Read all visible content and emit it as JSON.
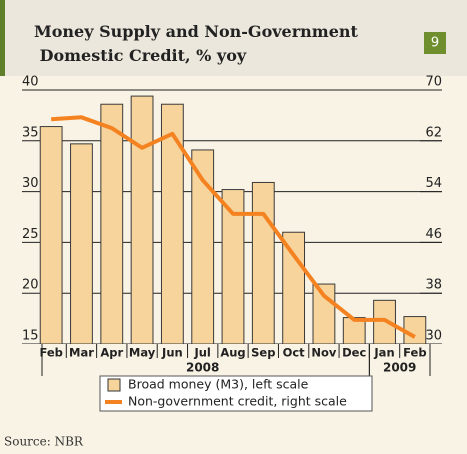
{
  "chart_data": {
    "type": "bar_line",
    "title": "Money Supply and Non-Government Domestic Credit, % yoy",
    "badge": "9",
    "categories": [
      "Feb",
      "Mar",
      "Apr",
      "May",
      "Jun",
      "Jul",
      "Aug",
      "Sep",
      "Oct",
      "Nov",
      "Dec",
      "Jan",
      "Feb"
    ],
    "year_labels": [
      "2008",
      "2009"
    ],
    "series": [
      {
        "name": "Broad money (M3), left scale",
        "color": "#f6d49c",
        "type": "bar",
        "values": [
          36.4,
          34.7,
          38.6,
          39.4,
          38.6,
          34.1,
          30.2,
          30.9,
          26.0,
          20.9,
          17.6,
          19.3,
          17.7
        ]
      },
      {
        "name": "Non-government credit, right scale",
        "color": "#f58220",
        "type": "line",
        "axis": "y2",
        "values": [
          65.4,
          65.7,
          64.0,
          60.9,
          63.1,
          55.8,
          50.5,
          50.5,
          44.0,
          37.6,
          33.8,
          33.8,
          31.1
        ]
      }
    ],
    "ylim": [
      15,
      40
    ],
    "yticks": [
      15,
      20,
      25,
      30,
      35,
      40
    ],
    "y2lim": [
      30,
      70
    ],
    "y2ticks": [
      30,
      38,
      46,
      54,
      62,
      70
    ],
    "grid": true,
    "source": "Source: NBR"
  }
}
